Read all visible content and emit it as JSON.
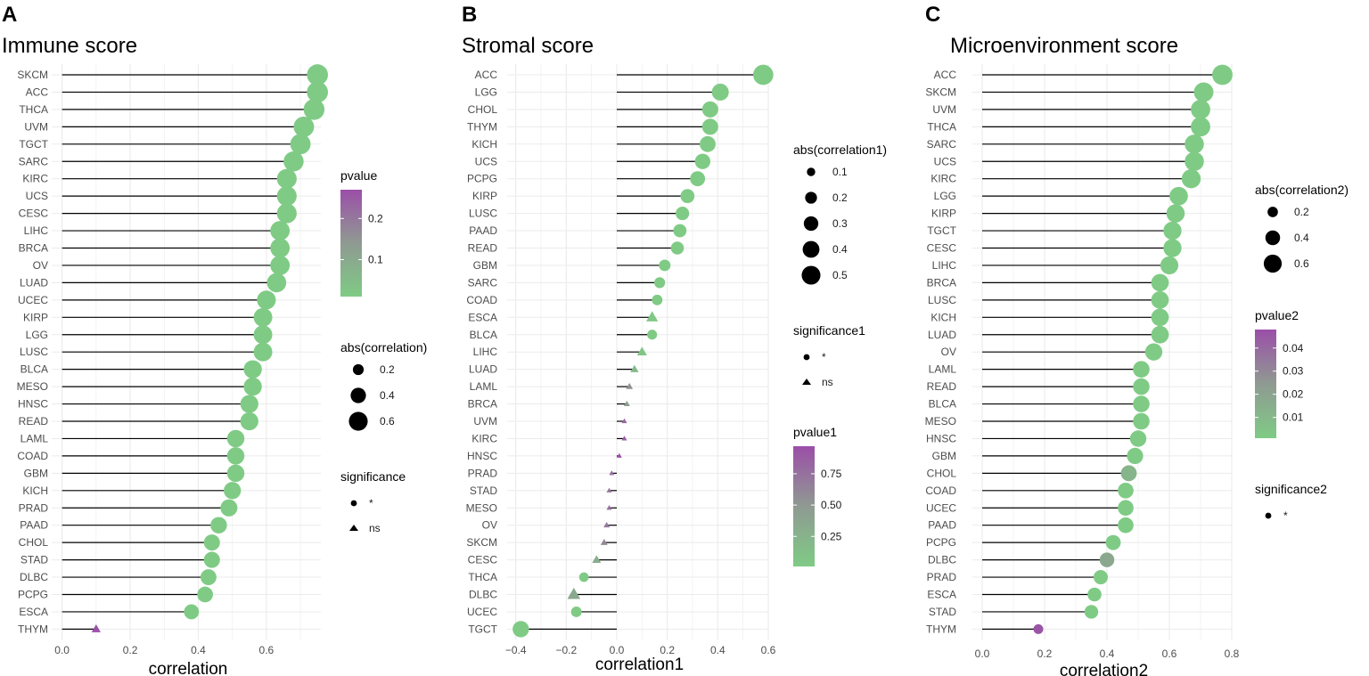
{
  "colors": {
    "low": "#7fcb85",
    "mid": "#8f9a92",
    "high": "#9b4fa8",
    "grid": "#ebebeb",
    "stem": "#000000"
  },
  "chart_data": [
    {
      "type": "lollipop",
      "panel_letter": "A",
      "title": "Immune score",
      "xlabel": "correlation",
      "xlim": [
        -0.02,
        0.76
      ],
      "xticks": [
        0.0,
        0.2,
        0.4,
        0.6
      ],
      "x_tick_labels": [
        "0.0",
        "0.2",
        "0.4",
        "0.6"
      ],
      "categories": [
        "SKCM",
        "ACC",
        "THCA",
        "UVM",
        "TGCT",
        "SARC",
        "KIRC",
        "UCS",
        "CESC",
        "LIHC",
        "BRCA",
        "OV",
        "LUAD",
        "UCEC",
        "KIRP",
        "LGG",
        "LUSC",
        "BLCA",
        "MESO",
        "HNSC",
        "READ",
        "LAML",
        "COAD",
        "GBM",
        "KICH",
        "PRAD",
        "PAAD",
        "CHOL",
        "STAD",
        "DLBC",
        "PCPG",
        "ESCA",
        "THYM"
      ],
      "values": [
        0.75,
        0.75,
        0.74,
        0.71,
        0.7,
        0.68,
        0.66,
        0.66,
        0.66,
        0.64,
        0.64,
        0.64,
        0.63,
        0.6,
        0.59,
        0.59,
        0.59,
        0.56,
        0.56,
        0.55,
        0.55,
        0.51,
        0.51,
        0.51,
        0.5,
        0.49,
        0.46,
        0.44,
        0.44,
        0.43,
        0.42,
        0.38,
        0.1
      ],
      "pvalues": [
        0.01,
        0.01,
        0.01,
        0.01,
        0.01,
        0.01,
        0.01,
        0.01,
        0.01,
        0.01,
        0.01,
        0.01,
        0.01,
        0.01,
        0.01,
        0.01,
        0.01,
        0.01,
        0.01,
        0.01,
        0.01,
        0.01,
        0.01,
        0.01,
        0.01,
        0.01,
        0.01,
        0.01,
        0.01,
        0.01,
        0.01,
        0.01,
        0.27
      ],
      "significance": [
        "*",
        "*",
        "*",
        "*",
        "*",
        "*",
        "*",
        "*",
        "*",
        "*",
        "*",
        "*",
        "*",
        "*",
        "*",
        "*",
        "*",
        "*",
        "*",
        "*",
        "*",
        "*",
        "*",
        "*",
        "*",
        "*",
        "*",
        "*",
        "*",
        "*",
        "*",
        "*",
        "ns"
      ],
      "legend_color": {
        "title": "pvalue",
        "range": [
          0.01,
          0.27
        ],
        "ticks": [
          0.1,
          0.2
        ],
        "tick_labels": [
          "0.1",
          "0.2"
        ]
      },
      "legend_size": {
        "title": "abs(correlation)",
        "values": [
          0.2,
          0.4,
          0.6
        ],
        "labels": [
          "0.2",
          "0.4",
          "0.6"
        ]
      },
      "legend_shape": {
        "title": "significance",
        "labels": [
          "*",
          "ns"
        ]
      }
    },
    {
      "type": "lollipop",
      "panel_letter": "B",
      "title": "Stromal score",
      "xlabel": "correlation1",
      "xlim": [
        -0.42,
        0.6
      ],
      "xticks": [
        -0.4,
        -0.2,
        0.0,
        0.2,
        0.4,
        0.6
      ],
      "x_tick_labels": [
        "−0.4",
        "−0.2",
        "0.0",
        "0.2",
        "0.4",
        "0.6"
      ],
      "categories": [
        "ACC",
        "LGG",
        "CHOL",
        "THYM",
        "KICH",
        "UCS",
        "PCPG",
        "KIRP",
        "LUSC",
        "PAAD",
        "READ",
        "GBM",
        "SARC",
        "COAD",
        "ESCA",
        "BLCA",
        "LIHC",
        "LUAD",
        "LAML",
        "BRCA",
        "UVM",
        "KIRC",
        "HNSC",
        "PRAD",
        "STAD",
        "MESO",
        "OV",
        "SKCM",
        "CESC",
        "THCA",
        "DLBC",
        "UCEC",
        "TGCT"
      ],
      "values": [
        0.58,
        0.41,
        0.37,
        0.37,
        0.36,
        0.34,
        0.32,
        0.28,
        0.26,
        0.25,
        0.24,
        0.19,
        0.17,
        0.16,
        0.14,
        0.14,
        0.1,
        0.07,
        0.05,
        0.04,
        0.03,
        0.03,
        0.01,
        -0.02,
        -0.03,
        -0.03,
        -0.04,
        -0.05,
        -0.08,
        -0.13,
        -0.17,
        -0.16,
        -0.38
      ],
      "pvalues": [
        0.01,
        0.01,
        0.01,
        0.01,
        0.01,
        0.01,
        0.01,
        0.01,
        0.01,
        0.01,
        0.01,
        0.01,
        0.01,
        0.01,
        0.04,
        0.01,
        0.06,
        0.2,
        0.55,
        0.45,
        0.8,
        0.85,
        0.95,
        0.78,
        0.72,
        0.75,
        0.68,
        0.6,
        0.3,
        0.01,
        0.35,
        0.01,
        0.01
      ],
      "significance": [
        "*",
        "*",
        "*",
        "*",
        "*",
        "*",
        "*",
        "*",
        "*",
        "*",
        "*",
        "*",
        "*",
        "*",
        "ns",
        "*",
        "ns",
        "ns",
        "ns",
        "ns",
        "ns",
        "ns",
        "ns",
        "ns",
        "ns",
        "ns",
        "ns",
        "ns",
        "ns",
        "*",
        "ns",
        "*",
        "*"
      ],
      "legend_size": {
        "title": "abs(correlation1)",
        "values": [
          0.1,
          0.2,
          0.3,
          0.4,
          0.5
        ],
        "labels": [
          "0.1",
          "0.2",
          "0.3",
          "0.4",
          "0.5"
        ]
      },
      "legend_shape": {
        "title": "significance1",
        "labels": [
          "*",
          "ns"
        ]
      },
      "legend_color": {
        "title": "pvalue1",
        "range": [
          0.01,
          0.97
        ],
        "ticks": [
          0.25,
          0.5,
          0.75
        ],
        "tick_labels": [
          "0.25",
          "0.50",
          "0.75"
        ]
      }
    },
    {
      "type": "lollipop",
      "panel_letter": "C",
      "title": "Microenvironment score",
      "xlabel": "correlation2",
      "xlim": [
        -0.02,
        0.8
      ],
      "xticks": [
        0.0,
        0.2,
        0.4,
        0.6,
        0.8
      ],
      "x_tick_labels": [
        "0.0",
        "0.2",
        "0.4",
        "0.6",
        "0.8"
      ],
      "categories": [
        "ACC",
        "SKCM",
        "UVM",
        "THCA",
        "SARC",
        "UCS",
        "KIRC",
        "LGG",
        "KIRP",
        "TGCT",
        "CESC",
        "LIHC",
        "BRCA",
        "LUSC",
        "KICH",
        "LUAD",
        "OV",
        "LAML",
        "READ",
        "BLCA",
        "MESO",
        "HNSC",
        "GBM",
        "CHOL",
        "COAD",
        "UCEC",
        "PAAD",
        "PCPG",
        "DLBC",
        "PRAD",
        "ESCA",
        "STAD",
        "THYM"
      ],
      "values": [
        0.77,
        0.71,
        0.7,
        0.7,
        0.68,
        0.68,
        0.67,
        0.63,
        0.62,
        0.61,
        0.61,
        0.6,
        0.57,
        0.57,
        0.57,
        0.57,
        0.55,
        0.51,
        0.51,
        0.51,
        0.51,
        0.5,
        0.49,
        0.47,
        0.46,
        0.46,
        0.46,
        0.42,
        0.4,
        0.38,
        0.36,
        0.35,
        0.18
      ],
      "pvalues": [
        0.001,
        0.001,
        0.001,
        0.001,
        0.001,
        0.001,
        0.001,
        0.001,
        0.001,
        0.001,
        0.001,
        0.001,
        0.001,
        0.001,
        0.001,
        0.001,
        0.001,
        0.001,
        0.001,
        0.001,
        0.001,
        0.001,
        0.001,
        0.012,
        0.001,
        0.001,
        0.001,
        0.001,
        0.018,
        0.001,
        0.001,
        0.001,
        0.046
      ],
      "significance": [
        "*",
        "*",
        "*",
        "*",
        "*",
        "*",
        "*",
        "*",
        "*",
        "*",
        "*",
        "*",
        "*",
        "*",
        "*",
        "*",
        "*",
        "*",
        "*",
        "*",
        "*",
        "*",
        "*",
        "*",
        "*",
        "*",
        "*",
        "*",
        "*",
        "*",
        "*",
        "*",
        "*"
      ],
      "legend_size": {
        "title": "abs(correlation2)",
        "values": [
          0.2,
          0.4,
          0.6
        ],
        "labels": [
          "0.2",
          "0.4",
          "0.6"
        ]
      },
      "legend_color": {
        "title": "pvalue2",
        "range": [
          0.001,
          0.048
        ],
        "ticks": [
          0.01,
          0.02,
          0.03,
          0.04
        ],
        "tick_labels": [
          "0.01",
          "0.02",
          "0.03",
          "0.04"
        ]
      },
      "legend_shape": {
        "title": "significance2",
        "labels": [
          "*"
        ]
      }
    }
  ]
}
